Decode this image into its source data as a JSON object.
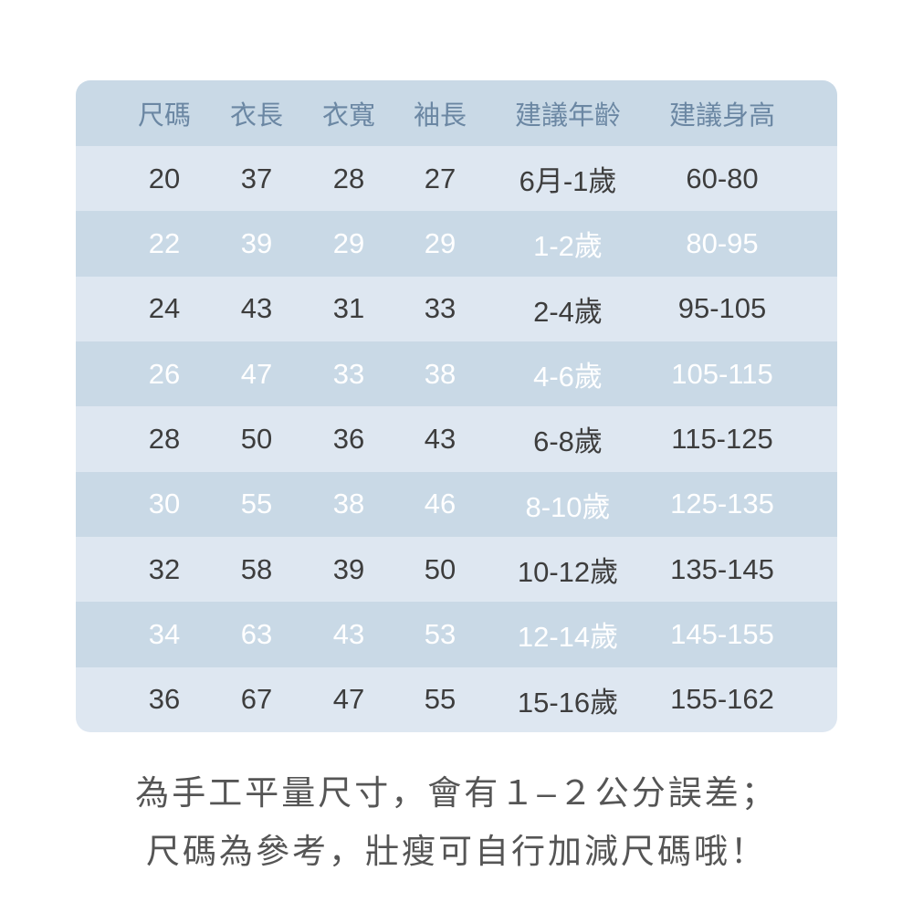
{
  "table": {
    "header": [
      "尺碼",
      "衣長",
      "衣寬",
      "袖長",
      "建議年齡",
      "建議身高"
    ],
    "rows": [
      [
        "20",
        "37",
        "28",
        "27",
        "6月-1歲",
        "60-80"
      ],
      [
        "22",
        "39",
        "29",
        "29",
        "1-2歲",
        "80-95"
      ],
      [
        "24",
        "43",
        "31",
        "33",
        "2-4歲",
        "95-105"
      ],
      [
        "26",
        "47",
        "33",
        "38",
        "4-6歲",
        "105-115"
      ],
      [
        "28",
        "50",
        "36",
        "43",
        "6-8歲",
        "115-125"
      ],
      [
        "30",
        "55",
        "38",
        "46",
        "8-10歲",
        "125-135"
      ],
      [
        "32",
        "58",
        "39",
        "50",
        "10-12歲",
        "135-145"
      ],
      [
        "34",
        "63",
        "43",
        "53",
        "12-14歲",
        "145-155"
      ],
      [
        "36",
        "67",
        "47",
        "55",
        "15-16歲",
        "155-162"
      ]
    ]
  },
  "footer": [
    "為手工平量尺寸，會有１–２公分誤差；",
    "尺碼為參考，壯瘦可自行加減尺碼哦！"
  ]
}
